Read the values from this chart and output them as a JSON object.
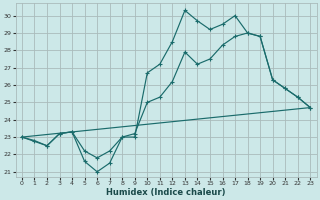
{
  "xlabel": "Humidex (Indice chaleur)",
  "background_color": "#cce8e8",
  "grid_color": "#aabbbb",
  "line_color": "#1a6b6b",
  "xlim": [
    -0.5,
    23.5
  ],
  "ylim": [
    20.7,
    30.7
  ],
  "xticks": [
    0,
    1,
    2,
    3,
    4,
    5,
    6,
    7,
    8,
    9,
    10,
    11,
    12,
    13,
    14,
    15,
    16,
    17,
    18,
    19,
    20,
    21,
    22,
    23
  ],
  "yticks": [
    21,
    22,
    23,
    24,
    25,
    26,
    27,
    28,
    29,
    30
  ],
  "curve1_x": [
    0,
    1,
    2,
    3,
    4,
    5,
    6,
    7,
    8,
    9,
    10,
    11,
    12,
    13,
    14,
    15,
    16,
    17,
    18,
    19,
    20,
    21,
    22,
    23
  ],
  "curve1_y": [
    23.0,
    22.8,
    22.5,
    23.2,
    23.3,
    21.6,
    21.0,
    21.5,
    23.0,
    23.0,
    26.7,
    27.2,
    28.5,
    30.3,
    29.7,
    29.2,
    29.5,
    30.0,
    29.0,
    28.8,
    26.3,
    25.8,
    25.3,
    24.7
  ],
  "curve2_x": [
    0,
    2,
    3,
    4,
    5,
    6,
    7,
    8,
    9,
    10,
    11,
    12,
    13,
    14,
    15,
    16,
    17,
    18,
    19,
    20,
    21,
    22,
    23
  ],
  "curve2_y": [
    23.0,
    22.5,
    23.2,
    23.3,
    22.2,
    21.8,
    22.2,
    23.0,
    23.2,
    25.0,
    25.3,
    26.2,
    27.9,
    27.2,
    27.5,
    28.3,
    28.8,
    29.0,
    28.8,
    26.3,
    25.8,
    25.3,
    24.7
  ],
  "trend_x": [
    0,
    23
  ],
  "trend_y": [
    23.0,
    24.7
  ]
}
